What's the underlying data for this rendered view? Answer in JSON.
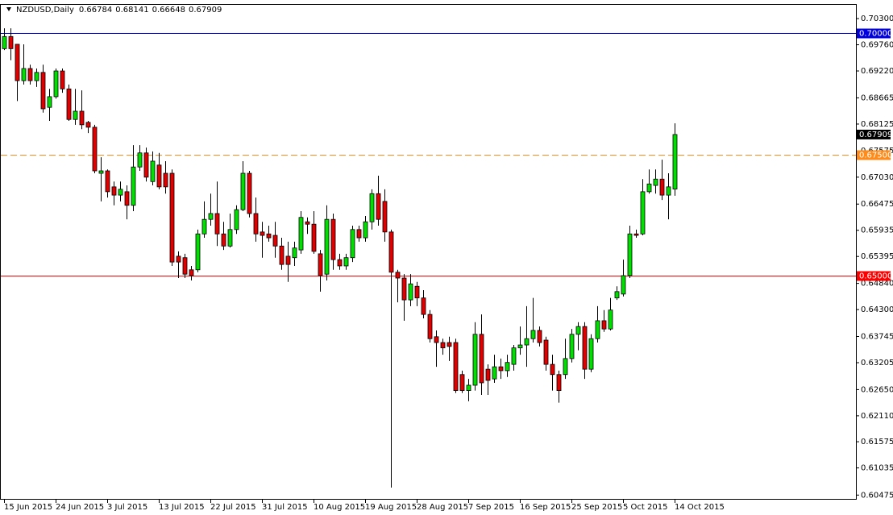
{
  "chart_data": {
    "type": "candlestick",
    "title": "NZDUSD,Daily",
    "categories": [
      "15 Jun 2015",
      null,
      null,
      null,
      null,
      null,
      null,
      null,
      "24 Jun 2015",
      null,
      null,
      null,
      null,
      null,
      null,
      null,
      "3 Jul 2015",
      null,
      null,
      null,
      null,
      null,
      null,
      null,
      "13 Jul 2015",
      null,
      null,
      null,
      null,
      null,
      null,
      null,
      "22 Jul 2015",
      null,
      null,
      null,
      null,
      null,
      null,
      null,
      "31 Jul 2015",
      null,
      null,
      null,
      null,
      null,
      null,
      null,
      "10 Aug 2015",
      null,
      null,
      null,
      null,
      null,
      null,
      null,
      "19 Aug 2015",
      null,
      null,
      null,
      null,
      null,
      null,
      null,
      "28 Aug 2015",
      null,
      null,
      null,
      null,
      null,
      null,
      null,
      "7 Sep 2015",
      null,
      null,
      null,
      null,
      null,
      null,
      null,
      "16 Sep 2015",
      null,
      null,
      null,
      null,
      null,
      null,
      null,
      "25 Sep 2015",
      null,
      null,
      null,
      null,
      null,
      null,
      null,
      "5 Oct 2015",
      null,
      null,
      null,
      null,
      null,
      null,
      null,
      "14 Oct 2015"
    ],
    "open": [
      0.6968,
      0.6993,
      0.6977,
      0.6902,
      0.6927,
      0.6902,
      0.6919,
      0.6847,
      0.6869,
      0.6922,
      0.6885,
      0.6822,
      0.6839,
      0.6816,
      0.6806,
      0.6711,
      0.6716,
      0.6683,
      0.6666,
      0.6673,
      0.6645,
      0.6724,
      0.6753,
      0.6694,
      0.6728,
      0.6711,
      0.6711,
      0.654,
      0.6537,
      0.6512,
      0.6512,
      0.6586,
      0.6616,
      0.6628,
      0.6586,
      0.6561,
      0.6595,
      0.6636,
      0.6711,
      0.6628,
      0.659,
      0.6586,
      0.6583,
      0.6561,
      0.654,
      0.6537,
      0.6553,
      0.6611,
      0.6606,
      0.6545,
      0.6503,
      0.6616,
      0.6533,
      0.652,
      0.6537,
      0.6595,
      0.6578,
      0.6611,
      0.6669,
      0.6653,
      0.659,
      0.6507,
      0.6495,
      0.645,
      0.6478,
      0.6454,
      0.642,
      0.6374,
      0.6362,
      0.6362,
      0.6362,
      0.6296,
      0.6263,
      0.6274,
      0.6379,
      0.6307,
      0.6287,
      0.6312,
      0.6304,
      0.6317,
      0.6351,
      0.6357,
      0.637,
      0.6387,
      0.6367,
      0.6317,
      0.6296,
      0.6296,
      0.6329,
      0.6379,
      0.6395,
      0.6307,
      0.637,
      0.6407,
      0.639,
      0.6454,
      0.6462,
      0.65,
      0.6586,
      0.6586,
      0.6673,
      0.6686,
      0.6699,
      0.6666,
      0.66784
    ],
    "high": [
      0.701,
      0.701,
      0.6977,
      0.6977,
      0.6935,
      0.6927,
      0.6935,
      0.6885,
      0.6927,
      0.6927,
      0.6894,
      0.6885,
      0.6882,
      0.6819,
      0.6811,
      0.6744,
      0.6719,
      0.6694,
      0.6694,
      0.6686,
      0.6769,
      0.6769,
      0.6764,
      0.6756,
      0.6753,
      0.6736,
      0.6719,
      0.655,
      0.6545,
      0.652,
      0.6595,
      0.6653,
      0.6669,
      0.6694,
      0.6611,
      0.6628,
      0.6645,
      0.6736,
      0.6716,
      0.6661,
      0.6611,
      0.6603,
      0.6611,
      0.6578,
      0.657,
      0.657,
      0.6633,
      0.662,
      0.6633,
      0.6553,
      0.6645,
      0.6628,
      0.6545,
      0.6545,
      0.6603,
      0.6603,
      0.6623,
      0.6678,
      0.6706,
      0.6678,
      0.6595,
      0.6512,
      0.6503,
      0.6503,
      0.6487,
      0.647,
      0.6429,
      0.6387,
      0.637,
      0.6374,
      0.637,
      0.6304,
      0.6287,
      0.6404,
      0.642,
      0.6317,
      0.6337,
      0.6329,
      0.6337,
      0.6357,
      0.6395,
      0.6437,
      0.6454,
      0.6395,
      0.6374,
      0.6337,
      0.6304,
      0.637,
      0.639,
      0.6404,
      0.6404,
      0.6379,
      0.6437,
      0.6429,
      0.6454,
      0.6478,
      0.6533,
      0.6603,
      0.6595,
      0.6699,
      0.6719,
      0.6719,
      0.6739,
      0.6711,
      0.68141
    ],
    "low": [
      0.6965,
      0.6944,
      0.686,
      0.6894,
      0.6894,
      0.6889,
      0.6836,
      0.6819,
      0.6865,
      0.6877,
      0.6819,
      0.6811,
      0.6802,
      0.6794,
      0.6711,
      0.6653,
      0.6661,
      0.6645,
      0.6653,
      0.6616,
      0.6633,
      0.6716,
      0.6694,
      0.6686,
      0.6678,
      0.6669,
      0.652,
      0.6495,
      0.6495,
      0.649,
      0.6507,
      0.6578,
      0.6603,
      0.6561,
      0.6553,
      0.6558,
      0.6586,
      0.6633,
      0.662,
      0.657,
      0.6537,
      0.657,
      0.6537,
      0.6512,
      0.6487,
      0.652,
      0.6545,
      0.6586,
      0.6545,
      0.6467,
      0.649,
      0.6512,
      0.6512,
      0.6512,
      0.6528,
      0.657,
      0.657,
      0.6595,
      0.6603,
      0.657,
      0.6063,
      0.6445,
      0.6407,
      0.6437,
      0.6437,
      0.6412,
      0.6362,
      0.6312,
      0.6337,
      0.6324,
      0.6258,
      0.6258,
      0.6241,
      0.6263,
      0.6254,
      0.6254,
      0.6279,
      0.6287,
      0.6291,
      0.6304,
      0.6337,
      0.6312,
      0.6362,
      0.6354,
      0.6304,
      0.6263,
      0.6238,
      0.6287,
      0.6321,
      0.6346,
      0.6287,
      0.6301,
      0.6362,
      0.6384,
      0.6387,
      0.645,
      0.6457,
      0.6495,
      0.6578,
      0.6583,
      0.6669,
      0.6669,
      0.6656,
      0.6616,
      0.66648
    ],
    "close": [
      0.6993,
      0.6968,
      0.6902,
      0.6927,
      0.6902,
      0.6919,
      0.6844,
      0.6869,
      0.6922,
      0.6885,
      0.6822,
      0.6839,
      0.6811,
      0.6806,
      0.6716,
      0.6716,
      0.6673,
      0.6666,
      0.6678,
      0.6645,
      0.6724,
      0.6753,
      0.6703,
      0.6736,
      0.6683,
      0.6683,
      0.6528,
      0.6528,
      0.6503,
      0.65,
      0.6586,
      0.6616,
      0.6628,
      0.6586,
      0.6561,
      0.6595,
      0.6636,
      0.6711,
      0.6628,
      0.6586,
      0.6583,
      0.6578,
      0.6561,
      0.6523,
      0.6523,
      0.6557,
      0.662,
      0.6606,
      0.655,
      0.65,
      0.6616,
      0.6533,
      0.652,
      0.6537,
      0.6595,
      0.6578,
      0.6611,
      0.6669,
      0.6616,
      0.659,
      0.6507,
      0.6495,
      0.645,
      0.6483,
      0.6454,
      0.642,
      0.637,
      0.6362,
      0.6351,
      0.6354,
      0.6263,
      0.6263,
      0.6274,
      0.6379,
      0.6279,
      0.6284,
      0.6312,
      0.6304,
      0.6321,
      0.6351,
      0.6357,
      0.637,
      0.6387,
      0.6362,
      0.6317,
      0.6296,
      0.6263,
      0.6329,
      0.6379,
      0.6395,
      0.6307,
      0.637,
      0.6407,
      0.639,
      0.6429,
      0.6467,
      0.65,
      0.6586,
      0.6583,
      0.6673,
      0.6689,
      0.6699,
      0.6666,
      0.6683,
      0.67909
    ],
    "up_color": "#00e000",
    "down_color": "#e00000",
    "ylim": [
      0.6038,
      0.706
    ],
    "yticks": [
      {
        "value": 0.703,
        "label": "0.70300"
      },
      {
        "value": 0.6976,
        "label": "0.69760"
      },
      {
        "value": 0.6922,
        "label": "0.69220"
      },
      {
        "value": 0.68665,
        "label": "0.68665"
      },
      {
        "value": 0.68125,
        "label": "0.68125"
      },
      {
        "value": 0.67575,
        "label": "0.67575"
      },
      {
        "value": 0.6703,
        "label": "0.67030"
      },
      {
        "value": 0.66475,
        "label": "0.66475"
      },
      {
        "value": 0.65935,
        "label": "0.65935"
      },
      {
        "value": 0.65395,
        "label": "0.65395"
      },
      {
        "value": 0.6484,
        "label": "0.64840"
      },
      {
        "value": 0.643,
        "label": "0.64300"
      },
      {
        "value": 0.63745,
        "label": "0.63745"
      },
      {
        "value": 0.63205,
        "label": "0.63205"
      },
      {
        "value": 0.6265,
        "label": "0.62650"
      },
      {
        "value": 0.6211,
        "label": "0.62110"
      },
      {
        "value": 0.61575,
        "label": "0.61575"
      },
      {
        "value": 0.61035,
        "label": "0.61035"
      },
      {
        "value": 0.60475,
        "label": "0.60475"
      }
    ],
    "hlines": [
      {
        "value": 0.7,
        "label": "0.70000",
        "color": "#0000e0",
        "dashed": false
      },
      {
        "value": 0.675,
        "label": "0.67500",
        "color": "#ff8c1a",
        "dashed": true
      },
      {
        "value": 0.65,
        "label": "0.65000",
        "color": "#ff0000",
        "dashed": false
      }
    ],
    "grid": false
  }
}
